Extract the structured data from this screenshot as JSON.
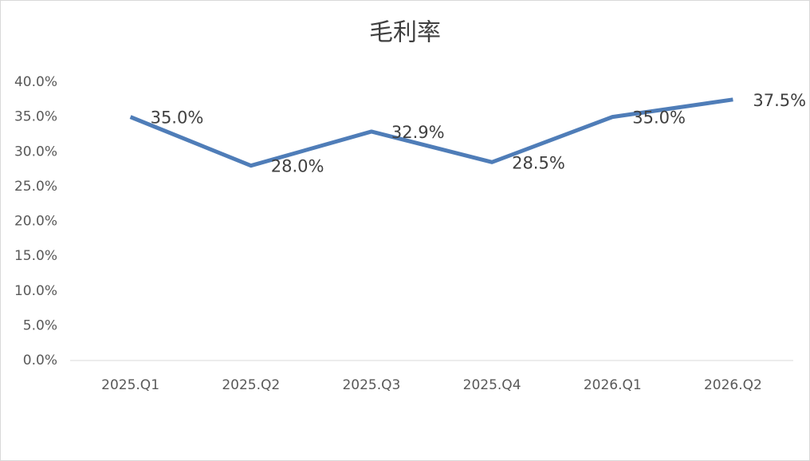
{
  "chart_data": {
    "type": "line",
    "title": "毛利率",
    "categories": [
      "2025.Q1",
      "2025.Q2",
      "2025.Q3",
      "2025.Q4",
      "2026.Q1",
      "2026.Q2"
    ],
    "series": [
      {
        "name": "毛利率",
        "color": "#4f7db8",
        "values": [
          35.0,
          28.0,
          32.9,
          28.5,
          35.0,
          37.5
        ],
        "value_labels": [
          "35.0%",
          "28.0%",
          "32.9%",
          "28.5%",
          "35.0%",
          "37.5%"
        ]
      }
    ],
    "ylim": [
      0,
      40
    ],
    "yticks": [
      {
        "value": 0,
        "label": "0.0%"
      },
      {
        "value": 5,
        "label": "5.0%"
      },
      {
        "value": 10,
        "label": "10.0%"
      },
      {
        "value": 15,
        "label": "15.0%"
      },
      {
        "value": 20,
        "label": "20.0%"
      },
      {
        "value": 25,
        "label": "25.0%"
      },
      {
        "value": 30,
        "label": "30.0%"
      },
      {
        "value": 35,
        "label": "35.0%"
      },
      {
        "value": 40,
        "label": "40.0%"
      }
    ],
    "grid": false
  }
}
